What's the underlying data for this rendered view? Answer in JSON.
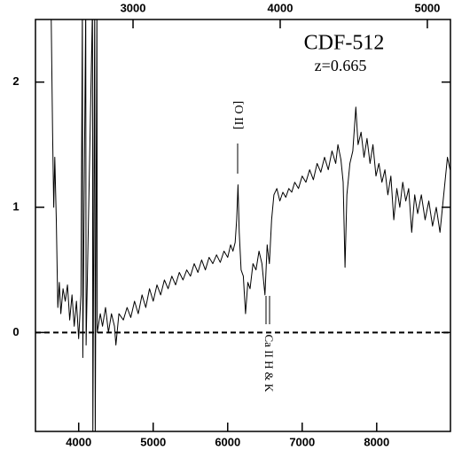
{
  "chart_data": {
    "type": "line",
    "title": "CDF-512",
    "subtitle": "z=0.665",
    "annotations": [
      "[O II]",
      "Ca II H & K"
    ],
    "color": "#000000",
    "xlim": [
      3420,
      8990
    ],
    "xticks": [
      4000,
      5000,
      6000,
      7000,
      8000
    ],
    "x2lim": [
      2337,
      5157
    ],
    "x2ticks": [
      3000,
      4000,
      5000
    ],
    "ylim": [
      -0.79,
      2.5
    ],
    "yticks": [
      0,
      1,
      2
    ],
    "zero_line": true,
    "x": [
      3630,
      3650,
      3665,
      3680,
      3700,
      3720,
      3740,
      3760,
      3790,
      3820,
      3850,
      3880,
      3910,
      3940,
      3970,
      4000,
      4030,
      4050,
      4055,
      4095,
      4100,
      4185,
      4190,
      4215,
      4222,
      4245,
      4250,
      4290,
      4320,
      4360,
      4400,
      4440,
      4480,
      4500,
      4540,
      4600,
      4650,
      4700,
      4750,
      4800,
      4850,
      4900,
      4950,
      5000,
      5050,
      5100,
      5150,
      5200,
      5250,
      5300,
      5350,
      5400,
      5450,
      5500,
      5550,
      5600,
      5650,
      5700,
      5750,
      5800,
      5850,
      5900,
      5950,
      6000,
      6040,
      6070,
      6100,
      6120,
      6138,
      6155,
      6180,
      6210,
      6240,
      6270,
      6300,
      6340,
      6380,
      6420,
      6460,
      6500,
      6530,
      6560,
      6590,
      6620,
      6660,
      6700,
      6740,
      6780,
      6820,
      6860,
      6900,
      6950,
      7000,
      7050,
      7100,
      7150,
      7200,
      7250,
      7300,
      7350,
      7400,
      7450,
      7480,
      7520,
      7550,
      7575,
      7600,
      7640,
      7680,
      7720,
      7750,
      7790,
      7830,
      7870,
      7910,
      7950,
      7990,
      8030,
      8070,
      8110,
      8150,
      8190,
      8230,
      8270,
      8310,
      8350,
      8390,
      8430,
      8470,
      8510,
      8550,
      8600,
      8650,
      8700,
      8750,
      8800,
      8850,
      8900,
      8950,
      8985
    ],
    "values": [
      2.6,
      1.6,
      1.0,
      1.4,
      0.9,
      0.2,
      0.4,
      0.15,
      0.35,
      0.25,
      0.38,
      0.1,
      0.3,
      0.05,
      0.25,
      -0.05,
      0.3,
      2.6,
      -0.2,
      2.6,
      -0.1,
      2.6,
      -0.85,
      2.6,
      -0.85,
      2.6,
      0.0,
      0.15,
      0.05,
      0.2,
      0.0,
      0.15,
      0.05,
      -0.1,
      0.15,
      0.1,
      0.2,
      0.12,
      0.25,
      0.15,
      0.3,
      0.2,
      0.35,
      0.25,
      0.38,
      0.3,
      0.42,
      0.35,
      0.45,
      0.38,
      0.48,
      0.42,
      0.5,
      0.45,
      0.55,
      0.48,
      0.58,
      0.5,
      0.6,
      0.55,
      0.62,
      0.56,
      0.65,
      0.6,
      0.7,
      0.65,
      0.72,
      0.9,
      1.18,
      0.8,
      0.5,
      0.45,
      0.15,
      0.4,
      0.35,
      0.55,
      0.5,
      0.65,
      0.55,
      0.3,
      0.7,
      0.55,
      0.9,
      1.1,
      1.15,
      1.05,
      1.12,
      1.08,
      1.15,
      1.12,
      1.2,
      1.15,
      1.25,
      1.2,
      1.3,
      1.22,
      1.35,
      1.28,
      1.4,
      1.3,
      1.45,
      1.35,
      1.5,
      1.38,
      1.2,
      0.52,
      1.1,
      1.35,
      1.45,
      1.8,
      1.5,
      1.6,
      1.4,
      1.55,
      1.35,
      1.5,
      1.25,
      1.35,
      1.2,
      1.3,
      1.1,
      1.25,
      0.9,
      1.15,
      1.0,
      1.2,
      1.05,
      1.15,
      0.8,
      1.1,
      0.95,
      1.1,
      0.9,
      1.05,
      0.85,
      1.0,
      0.8,
      1.1,
      1.4,
      1.3
    ]
  }
}
